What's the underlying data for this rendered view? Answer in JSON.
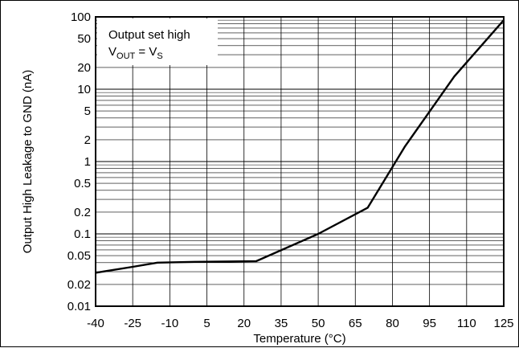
{
  "chart_data": {
    "type": "line",
    "xlabel": "Temperature (°C)",
    "ylabel": "Output High Leakage to GND (nA)",
    "xlim": [
      -40,
      125
    ],
    "ylim": [
      0.01,
      100
    ],
    "y_scale": "log",
    "grid": true,
    "x_ticks": [
      "-40",
      "-25",
      "-10",
      "5",
      "20",
      "35",
      "50",
      "65",
      "80",
      "95",
      "110",
      "125"
    ],
    "y_ticks": [
      "0.01",
      "0.02",
      "0.05",
      "0.1",
      "0.2",
      "0.5",
      "1",
      "2",
      "5",
      "10",
      "20",
      "50",
      "100"
    ],
    "annotation": {
      "line1": "Output set high",
      "line2": {
        "a": "V",
        "a_sub": "OUT",
        "eq": " = V",
        "b_sub": "S"
      }
    },
    "series": [
      {
        "x": [
          -40,
          -25,
          -15,
          0,
          25,
          50,
          70,
          85,
          105,
          125
        ],
        "y": [
          0.029,
          0.035,
          0.04,
          0.041,
          0.042,
          0.1,
          0.23,
          1.6,
          15,
          90
        ]
      }
    ]
  }
}
